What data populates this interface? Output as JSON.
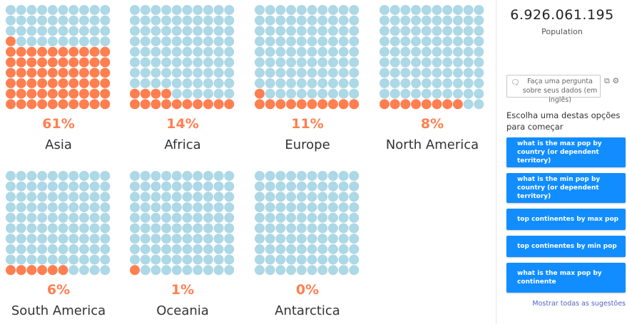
{
  "chart_data": {
    "type": "waffle",
    "grid": [
      10,
      10
    ],
    "colors": {
      "filled": "#FF7F50",
      "empty": "#ADD8E6"
    },
    "items": [
      {
        "name": "Asia",
        "value": 61,
        "label": "61%"
      },
      {
        "name": "Africa",
        "value": 14,
        "label": "14%"
      },
      {
        "name": "Europe",
        "value": 11,
        "label": "11%"
      },
      {
        "name": "North America",
        "value": 8,
        "label": "8%"
      },
      {
        "name": "South America",
        "value": 6,
        "label": "6%"
      },
      {
        "name": "Oceania",
        "value": 1,
        "label": "1%"
      },
      {
        "name": "Antarctica",
        "value": 0,
        "label": "0%"
      }
    ]
  },
  "panel": {
    "kpi_value": "6.926.061.195",
    "kpi_label": "Population",
    "qa_placeholder": "Faça uma pergunta sobre seus dados (em inglês)",
    "prompt": "Escolha uma destas opções para começar",
    "suggestions": [
      "what is the max pop by country (or dependent territory)",
      "what is the min pop by country (or dependent territory)",
      "top continentes by max pop",
      "top continentes by min pop",
      "what is the max pop by continente"
    ],
    "show_all": "Mostrar todas as sugestões",
    "accent": "#118DFF"
  }
}
